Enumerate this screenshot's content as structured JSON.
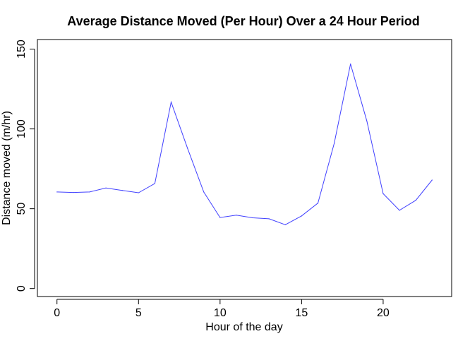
{
  "chart_data": {
    "type": "line",
    "title": "Average Distance Moved (Per Hour) Over a 24 Hour Period",
    "xlabel": "Hour of the day",
    "ylabel": "Distance moved (m/hr)",
    "xlim": [
      -1.2,
      24.2
    ],
    "ylim": [
      -5,
      156
    ],
    "xticks": [
      0,
      5,
      10,
      15,
      20
    ],
    "xtick_labels": [
      "0",
      "5",
      "10",
      "15",
      "20"
    ],
    "yticks": [
      0,
      50,
      100,
      150
    ],
    "ytick_labels": [
      "0",
      "50",
      "100",
      "150"
    ],
    "grid": false,
    "line_color": "#4040ff",
    "series": [
      {
        "x": [
          0,
          1,
          2,
          3,
          4,
          5,
          6,
          7,
          8,
          9,
          10,
          11,
          12,
          13,
          14,
          15,
          16,
          17,
          18,
          19,
          20,
          21,
          22,
          23
        ],
        "values": [
          60.5,
          60.2,
          60.5,
          63.0,
          61.5,
          60.0,
          65.8,
          116.8,
          88.0,
          60.5,
          44.5,
          46.0,
          44.3,
          43.7,
          40.0,
          45.5,
          53.5,
          91.0,
          140.7,
          105.0,
          59.5,
          49.0,
          55.3,
          68.0
        ]
      }
    ]
  }
}
